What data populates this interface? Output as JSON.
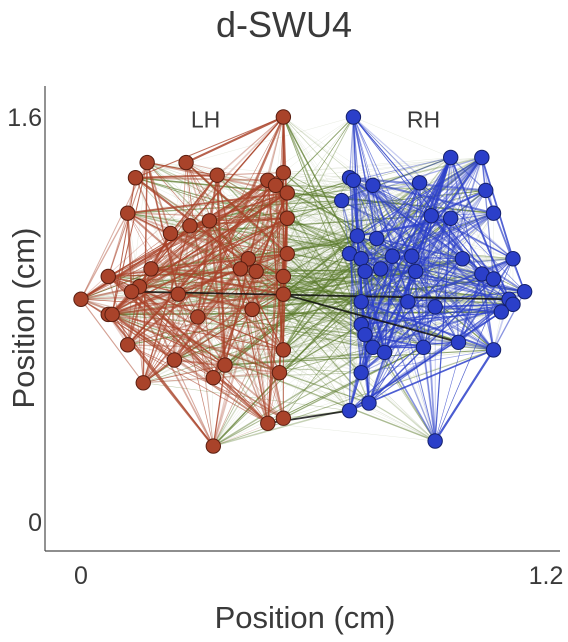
{
  "title": "d-SWU4",
  "chart_data": {
    "type": "scatter",
    "title": "d-SWU4",
    "xlabel": "Position (cm)",
    "ylabel": "Position (cm)",
    "xlim": [
      -0.1,
      1.22
    ],
    "ylim": [
      -0.08,
      1.66
    ],
    "x_ticks": [
      {
        "value": 0,
        "label": "0"
      },
      {
        "value": 1.2,
        "label": "1.2"
      }
    ],
    "y_ticks": [
      {
        "value": 0,
        "label": "0"
      },
      {
        "value": 1.6,
        "label": "1.6"
      }
    ],
    "annotations": [
      {
        "text": "LH",
        "x": 0.32,
        "y": 1.59
      },
      {
        "text": "RH",
        "x": 0.88,
        "y": 1.59
      }
    ],
    "colors": {
      "LH": "#a9432a",
      "RH": "#2b3fc9",
      "inter": "#5a7a2a",
      "strong": "#111111"
    },
    "series": [
      {
        "name": "LH",
        "color": "#a9432a",
        "points": [
          [
            0.52,
            1.6
          ],
          [
            0.17,
            1.42
          ],
          [
            0.27,
            1.42
          ],
          [
            0.14,
            1.36
          ],
          [
            0.52,
            1.38
          ],
          [
            0.35,
            1.37
          ],
          [
            0.48,
            1.35
          ],
          [
            0.5,
            1.33
          ],
          [
            0.53,
            1.3
          ],
          [
            0.12,
            1.22
          ],
          [
            0.33,
            1.19
          ],
          [
            0.28,
            1.17
          ],
          [
            0.23,
            1.14
          ],
          [
            0.53,
            1.2
          ],
          [
            0.53,
            1.06
          ],
          [
            0.43,
            1.04
          ],
          [
            0.18,
            1.0
          ],
          [
            0.07,
            0.97
          ],
          [
            0.41,
            1.0
          ],
          [
            0.45,
            0.99
          ],
          [
            0.52,
            0.97
          ],
          [
            0.15,
            0.93
          ],
          [
            0.13,
            0.91
          ],
          [
            0.25,
            0.9
          ],
          [
            0.52,
            0.9
          ],
          [
            0.0,
            0.88
          ],
          [
            0.44,
            0.84
          ],
          [
            0.07,
            0.82
          ],
          [
            0.08,
            0.82
          ],
          [
            0.3,
            0.81
          ],
          [
            0.12,
            0.7
          ],
          [
            0.52,
            0.68
          ],
          [
            0.24,
            0.64
          ],
          [
            0.37,
            0.62
          ],
          [
            0.34,
            0.57
          ],
          [
            0.51,
            0.59
          ],
          [
            0.16,
            0.55
          ],
          [
            0.52,
            0.41
          ],
          [
            0.48,
            0.39
          ],
          [
            0.34,
            0.3
          ]
        ]
      },
      {
        "name": "RH",
        "color": "#2b3fc9",
        "points": [
          [
            0.7,
            1.6
          ],
          [
            0.95,
            1.44
          ],
          [
            1.03,
            1.44
          ],
          [
            0.69,
            1.36
          ],
          [
            0.7,
            1.35
          ],
          [
            0.75,
            1.33
          ],
          [
            0.87,
            1.34
          ],
          [
            1.04,
            1.31
          ],
          [
            0.67,
            1.27
          ],
          [
            1.06,
            1.22
          ],
          [
            0.9,
            1.21
          ],
          [
            0.95,
            1.2
          ],
          [
            0.71,
            1.13
          ],
          [
            0.76,
            1.12
          ],
          [
            0.69,
            1.06
          ],
          [
            0.8,
            1.05
          ],
          [
            0.85,
            1.05
          ],
          [
            0.98,
            1.04
          ],
          [
            0.72,
            1.04
          ],
          [
            1.11,
            1.04
          ],
          [
            0.73,
            0.99
          ],
          [
            0.86,
            0.99
          ],
          [
            0.77,
            1.0
          ],
          [
            1.03,
            0.98
          ],
          [
            1.06,
            0.96
          ],
          [
            1.14,
            0.91
          ],
          [
            1.1,
            0.88
          ],
          [
            0.72,
            0.87
          ],
          [
            0.84,
            0.87
          ],
          [
            1.11,
            0.86
          ],
          [
            0.91,
            0.85
          ],
          [
            1.08,
            0.83
          ],
          [
            0.72,
            0.78
          ],
          [
            0.73,
            0.74
          ],
          [
            0.97,
            0.71
          ],
          [
            0.88,
            0.69
          ],
          [
            0.75,
            0.69
          ],
          [
            1.06,
            0.68
          ],
          [
            0.78,
            0.67
          ],
          [
            0.72,
            0.59
          ],
          [
            0.74,
            0.47
          ],
          [
            0.69,
            0.44
          ],
          [
            0.91,
            0.32
          ]
        ]
      }
    ]
  }
}
